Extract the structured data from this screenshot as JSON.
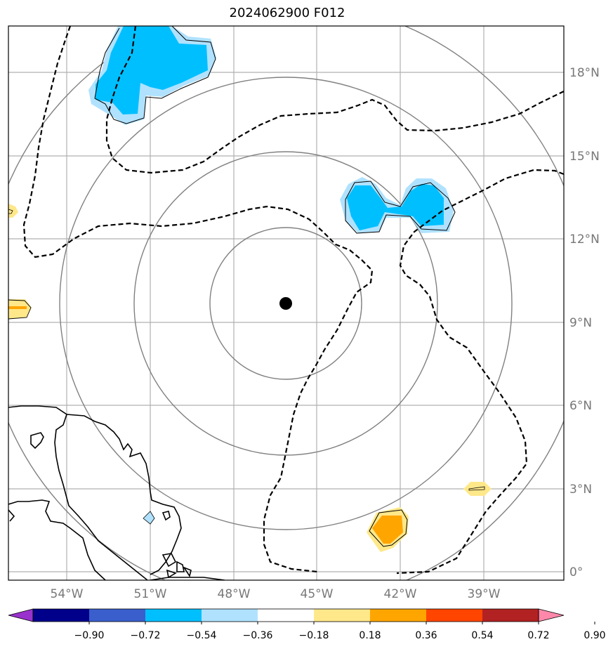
{
  "title": "2024062900 F012",
  "map": {
    "lat_ticks": [
      "18°N",
      "15°N",
      "12°N",
      "9°N",
      "6°N",
      "3°N",
      "0°"
    ],
    "lon_ticks": [
      "54°W",
      "51°W",
      "48°W",
      "45°W",
      "42°W",
      "39°W"
    ],
    "center_marker": {
      "lon": "46.1°W",
      "lat": "9.7°N"
    },
    "range_rings": 4
  },
  "colorbar": {
    "ticks": [
      "−0.90",
      "−0.72",
      "−0.54",
      "−0.36",
      "−0.18",
      "0.18",
      "0.36",
      "0.54",
      "0.72",
      "0.90"
    ],
    "colors": [
      "#9932cc",
      "#00008b",
      "#3a5fcd",
      "#00bfff",
      "#b0e2ff",
      "#ffffff",
      "#ffe88a",
      "#ffa500",
      "#ff4500",
      "#b22222",
      "#ff88aa"
    ]
  }
}
